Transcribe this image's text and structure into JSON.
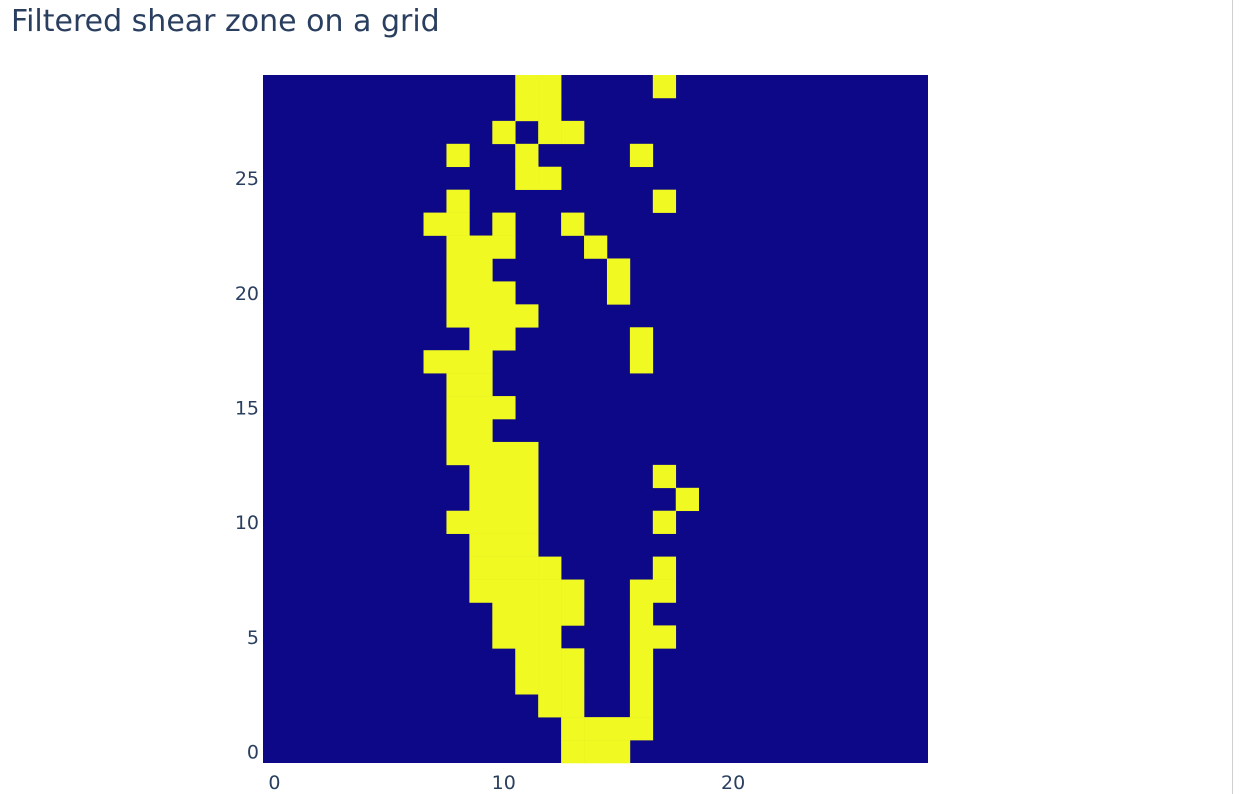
{
  "chart_data": {
    "type": "heatmap",
    "title": "Filtered shear zone on a grid",
    "xlabel": "",
    "ylabel": "",
    "x_range": [
      -0.5,
      28.5
    ],
    "y_range": [
      -0.5,
      29.5
    ],
    "x_ticks": [
      0,
      10,
      20
    ],
    "y_ticks": [
      0,
      5,
      10,
      15,
      20,
      25
    ],
    "colorscale": {
      "low": "#0d0887",
      "high": "#f0f921"
    },
    "showscale": false,
    "z": [
      [
        0,
        0,
        0,
        0,
        0,
        0,
        0,
        0,
        0,
        0,
        0,
        0,
        0,
        1,
        1,
        1,
        0,
        0,
        0,
        0,
        0,
        0,
        0,
        0,
        0,
        0,
        0,
        0,
        0
      ],
      [
        0,
        0,
        0,
        0,
        0,
        0,
        0,
        0,
        0,
        0,
        0,
        0,
        0,
        1,
        1,
        1,
        1,
        0,
        0,
        0,
        0,
        0,
        0,
        0,
        0,
        0,
        0,
        0,
        0
      ],
      [
        0,
        0,
        0,
        0,
        0,
        0,
        0,
        0,
        0,
        0,
        0,
        0,
        1,
        1,
        0,
        0,
        1,
        0,
        0,
        0,
        0,
        0,
        0,
        0,
        0,
        0,
        0,
        0,
        0
      ],
      [
        0,
        0,
        0,
        0,
        0,
        0,
        0,
        0,
        0,
        0,
        0,
        1,
        1,
        1,
        0,
        0,
        1,
        0,
        0,
        0,
        0,
        0,
        0,
        0,
        0,
        0,
        0,
        0,
        0
      ],
      [
        0,
        0,
        0,
        0,
        0,
        0,
        0,
        0,
        0,
        0,
        0,
        1,
        1,
        1,
        0,
        0,
        1,
        0,
        0,
        0,
        0,
        0,
        0,
        0,
        0,
        0,
        0,
        0,
        0
      ],
      [
        0,
        0,
        0,
        0,
        0,
        0,
        0,
        0,
        0,
        0,
        1,
        1,
        1,
        0,
        0,
        0,
        1,
        1,
        0,
        0,
        0,
        0,
        0,
        0,
        0,
        0,
        0,
        0,
        0
      ],
      [
        0,
        0,
        0,
        0,
        0,
        0,
        0,
        0,
        0,
        0,
        1,
        1,
        1,
        1,
        0,
        0,
        1,
        0,
        0,
        0,
        0,
        0,
        0,
        0,
        0,
        0,
        0,
        0,
        0
      ],
      [
        0,
        0,
        0,
        0,
        0,
        0,
        0,
        0,
        0,
        1,
        1,
        1,
        1,
        1,
        0,
        0,
        1,
        1,
        0,
        0,
        0,
        0,
        0,
        0,
        0,
        0,
        0,
        0,
        0
      ],
      [
        0,
        0,
        0,
        0,
        0,
        0,
        0,
        0,
        0,
        1,
        1,
        1,
        1,
        0,
        0,
        0,
        0,
        1,
        0,
        0,
        0,
        0,
        0,
        0,
        0,
        0,
        0,
        0,
        0
      ],
      [
        0,
        0,
        0,
        0,
        0,
        0,
        0,
        0,
        0,
        1,
        1,
        1,
        0,
        0,
        0,
        0,
        0,
        0,
        0,
        0,
        0,
        0,
        0,
        0,
        0,
        0,
        0,
        0,
        0
      ],
      [
        0,
        0,
        0,
        0,
        0,
        0,
        0,
        0,
        1,
        1,
        1,
        1,
        0,
        0,
        0,
        0,
        0,
        1,
        0,
        0,
        0,
        0,
        0,
        0,
        0,
        0,
        0,
        0,
        0
      ],
      [
        0,
        0,
        0,
        0,
        0,
        0,
        0,
        0,
        0,
        1,
        1,
        1,
        0,
        0,
        0,
        0,
        0,
        0,
        1,
        0,
        0,
        0,
        0,
        0,
        0,
        0,
        0,
        0,
        0
      ],
      [
        0,
        0,
        0,
        0,
        0,
        0,
        0,
        0,
        0,
        1,
        1,
        1,
        0,
        0,
        0,
        0,
        0,
        1,
        0,
        0,
        0,
        0,
        0,
        0,
        0,
        0,
        0,
        0,
        0
      ],
      [
        0,
        0,
        0,
        0,
        0,
        0,
        0,
        0,
        1,
        1,
        1,
        1,
        0,
        0,
        0,
        0,
        0,
        0,
        0,
        0,
        0,
        0,
        0,
        0,
        0,
        0,
        0,
        0,
        0
      ],
      [
        0,
        0,
        0,
        0,
        0,
        0,
        0,
        0,
        1,
        1,
        0,
        0,
        0,
        0,
        0,
        0,
        0,
        0,
        0,
        0,
        0,
        0,
        0,
        0,
        0,
        0,
        0,
        0,
        0
      ],
      [
        0,
        0,
        0,
        0,
        0,
        0,
        0,
        0,
        1,
        1,
        1,
        0,
        0,
        0,
        0,
        0,
        0,
        0,
        0,
        0,
        0,
        0,
        0,
        0,
        0,
        0,
        0,
        0,
        0
      ],
      [
        0,
        0,
        0,
        0,
        0,
        0,
        0,
        0,
        1,
        1,
        0,
        0,
        0,
        0,
        0,
        0,
        0,
        0,
        0,
        0,
        0,
        0,
        0,
        0,
        0,
        0,
        0,
        0,
        0
      ],
      [
        0,
        0,
        0,
        0,
        0,
        0,
        0,
        1,
        1,
        1,
        0,
        0,
        0,
        0,
        0,
        0,
        1,
        0,
        0,
        0,
        0,
        0,
        0,
        0,
        0,
        0,
        0,
        0,
        0
      ],
      [
        0,
        0,
        0,
        0,
        0,
        0,
        0,
        0,
        0,
        1,
        1,
        0,
        0,
        0,
        0,
        0,
        1,
        0,
        0,
        0,
        0,
        0,
        0,
        0,
        0,
        0,
        0,
        0,
        0
      ],
      [
        0,
        0,
        0,
        0,
        0,
        0,
        0,
        0,
        1,
        1,
        1,
        1,
        0,
        0,
        0,
        0,
        0,
        0,
        0,
        0,
        0,
        0,
        0,
        0,
        0,
        0,
        0,
        0,
        0
      ],
      [
        0,
        0,
        0,
        0,
        0,
        0,
        0,
        0,
        1,
        1,
        1,
        0,
        0,
        0,
        0,
        1,
        0,
        0,
        0,
        0,
        0,
        0,
        0,
        0,
        0,
        0,
        0,
        0,
        0
      ],
      [
        0,
        0,
        0,
        0,
        0,
        0,
        0,
        0,
        1,
        1,
        0,
        0,
        0,
        0,
        0,
        1,
        0,
        0,
        0,
        0,
        0,
        0,
        0,
        0,
        0,
        0,
        0,
        0,
        0
      ],
      [
        0,
        0,
        0,
        0,
        0,
        0,
        0,
        0,
        1,
        1,
        1,
        0,
        0,
        0,
        1,
        0,
        0,
        0,
        0,
        0,
        0,
        0,
        0,
        0,
        0,
        0,
        0,
        0,
        0
      ],
      [
        0,
        0,
        0,
        0,
        0,
        0,
        0,
        1,
        1,
        0,
        1,
        0,
        0,
        1,
        0,
        0,
        0,
        0,
        0,
        0,
        0,
        0,
        0,
        0,
        0,
        0,
        0,
        0,
        0
      ],
      [
        0,
        0,
        0,
        0,
        0,
        0,
        0,
        0,
        1,
        0,
        0,
        0,
        0,
        0,
        0,
        0,
        0,
        1,
        0,
        0,
        0,
        0,
        0,
        0,
        0,
        0,
        0,
        0,
        0
      ],
      [
        0,
        0,
        0,
        0,
        0,
        0,
        0,
        0,
        0,
        0,
        0,
        1,
        1,
        0,
        0,
        0,
        0,
        0,
        0,
        0,
        0,
        0,
        0,
        0,
        0,
        0,
        0,
        0,
        0
      ],
      [
        0,
        0,
        0,
        0,
        0,
        0,
        0,
        0,
        1,
        0,
        0,
        1,
        0,
        0,
        0,
        0,
        1,
        0,
        0,
        0,
        0,
        0,
        0,
        0,
        0,
        0,
        0,
        0,
        0
      ],
      [
        0,
        0,
        0,
        0,
        0,
        0,
        0,
        0,
        0,
        0,
        1,
        0,
        1,
        1,
        0,
        0,
        0,
        0,
        0,
        0,
        0,
        0,
        0,
        0,
        0,
        0,
        0,
        0,
        0
      ],
      [
        0,
        0,
        0,
        0,
        0,
        0,
        0,
        0,
        0,
        0,
        0,
        1,
        1,
        0,
        0,
        0,
        0,
        0,
        0,
        0,
        0,
        0,
        0,
        0,
        0,
        0,
        0,
        0,
        0
      ],
      [
        0,
        0,
        0,
        0,
        0,
        0,
        0,
        0,
        0,
        0,
        0,
        1,
        1,
        0,
        0,
        0,
        0,
        1,
        0,
        0,
        0,
        0,
        0,
        0,
        0,
        0,
        0,
        0,
        0
      ]
    ]
  }
}
